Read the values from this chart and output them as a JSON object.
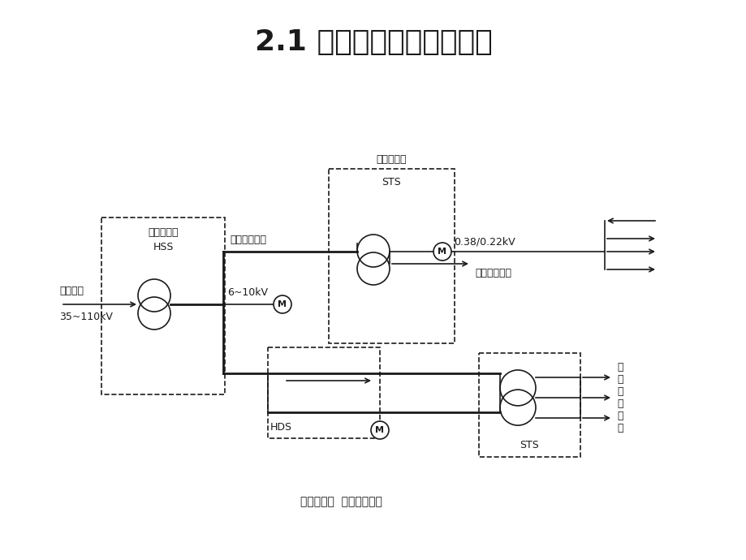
{
  "title": "2.1 负荷计算的内容和目的",
  "title_fontsize": 26,
  "title_bold": true,
  "bg_color": "#ffffff",
  "line_color": "#1a1a1a",
  "diagram": {
    "supply_label": "供电电源",
    "supply_voltage": "35~110kV",
    "hss_label": "总降变电所",
    "hss_box_label": "HSS",
    "hv_line_label": "高压配电线路",
    "mv_voltage": "6~10kV",
    "sts_top_label": "车间变电所",
    "sts_top_box": "STS",
    "sts_bot_box": "STS",
    "lv_voltage": "0.38/0.22kV",
    "lv_line_label": "低压配电线路",
    "hds_label": "HDS",
    "hv_substation_label": "高压配电所",
    "hv_device_label": "高压用电设备",
    "lv_device_label": "低\n压\n用\n电\n设\n备"
  }
}
